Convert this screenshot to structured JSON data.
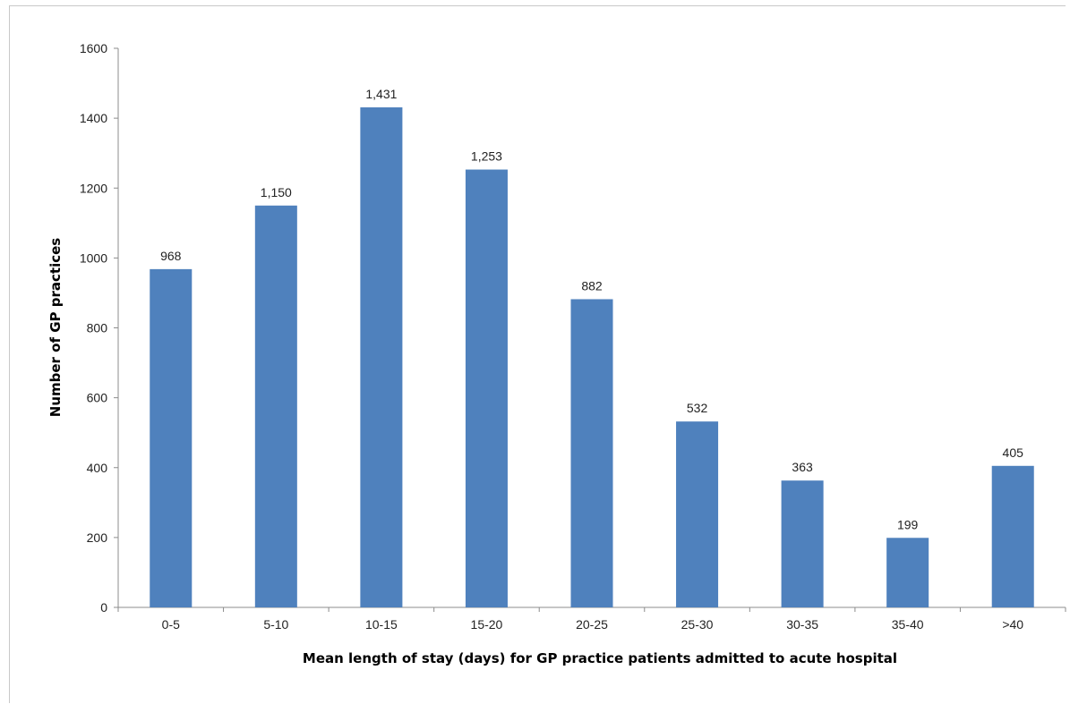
{
  "chart_data": {
    "type": "bar",
    "title": "",
    "xlabel": "Mean length of stay (days) for GP practice patients admitted to acute hospital",
    "ylabel": "Number of GP practices",
    "ylim": [
      0,
      1600
    ],
    "yticks": [
      0,
      200,
      400,
      600,
      800,
      1000,
      1200,
      1400,
      1600
    ],
    "categories": [
      "0-5",
      "5-10",
      "10-15",
      "15-20",
      "20-25",
      "25-30",
      "30-35",
      "35-40",
      ">40"
    ],
    "values": [
      968,
      1150,
      1431,
      1253,
      882,
      532,
      363,
      199,
      405
    ],
    "data_labels": [
      "968",
      "1,150",
      "1,431",
      "1,253",
      "882",
      "532",
      "363",
      "199",
      "405"
    ],
    "grid": false,
    "legend": "none",
    "colors": {
      "bar": "#4f81bd",
      "axis": "#8c8c8c"
    }
  }
}
